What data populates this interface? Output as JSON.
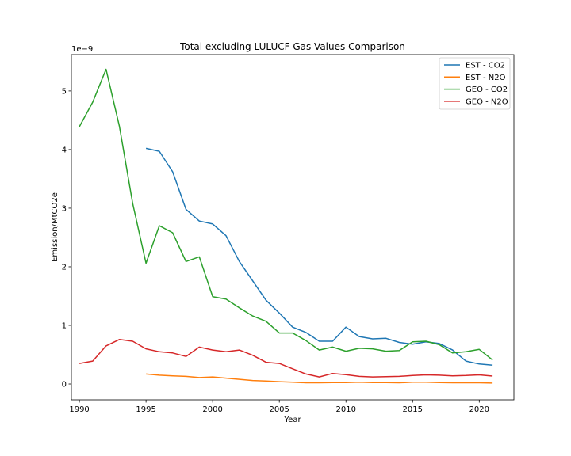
{
  "chart_data": {
    "type": "line",
    "title": "Total excluding LULUCF Gas Values Comparison",
    "xlabel": "Year",
    "ylabel": "Emission/MtCO2e",
    "y_offset_label": "1e−9",
    "xlim": [
      1989.4,
      2022.6
    ],
    "ylim": [
      -0.27,
      5.62
    ],
    "x_ticks": [
      1990,
      1995,
      2000,
      2005,
      2010,
      2015,
      2020
    ],
    "y_ticks": [
      0,
      1,
      2,
      3,
      4,
      5
    ],
    "legend_position": "upper right",
    "grid": false,
    "series": [
      {
        "name": "EST - CO2",
        "color": "#1f77b4",
        "x": [
          1995,
          1996,
          1997,
          1998,
          1999,
          2000,
          2001,
          2002,
          2003,
          2004,
          2005,
          2006,
          2007,
          2008,
          2009,
          2010,
          2011,
          2012,
          2013,
          2014,
          2015,
          2016,
          2017,
          2018,
          2019,
          2020,
          2021
        ],
        "y": [
          4.02,
          3.97,
          3.62,
          2.98,
          2.78,
          2.73,
          2.53,
          2.09,
          1.76,
          1.43,
          1.21,
          0.97,
          0.88,
          0.73,
          0.73,
          0.97,
          0.81,
          0.77,
          0.78,
          0.71,
          0.68,
          0.72,
          0.69,
          0.58,
          0.39,
          0.34,
          0.32
        ]
      },
      {
        "name": "EST - N2O",
        "color": "#ff7f0e",
        "x": [
          1995,
          1996,
          1997,
          1998,
          1999,
          2000,
          2001,
          2002,
          2003,
          2004,
          2005,
          2006,
          2007,
          2008,
          2009,
          2010,
          2011,
          2012,
          2013,
          2014,
          2015,
          2016,
          2017,
          2018,
          2019,
          2020,
          2021
        ],
        "y": [
          0.17,
          0.15,
          0.14,
          0.13,
          0.11,
          0.12,
          0.1,
          0.08,
          0.06,
          0.05,
          0.04,
          0.03,
          0.02,
          0.02,
          0.025,
          0.025,
          0.03,
          0.025,
          0.025,
          0.02,
          0.03,
          0.03,
          0.025,
          0.02,
          0.02,
          0.02,
          0.015
        ]
      },
      {
        "name": "GEO - CO2",
        "color": "#2ca02c",
        "x": [
          1990,
          1991,
          1992,
          1993,
          1994,
          1995,
          1996,
          1997,
          1998,
          1999,
          2000,
          2001,
          2002,
          2003,
          2004,
          2005,
          2006,
          2007,
          2008,
          2009,
          2010,
          2011,
          2012,
          2013,
          2014,
          2015,
          2016,
          2017,
          2018,
          2019,
          2020,
          2021
        ],
        "y": [
          4.39,
          4.81,
          5.37,
          4.4,
          3.08,
          2.06,
          2.7,
          2.58,
          2.09,
          2.17,
          1.49,
          1.45,
          1.3,
          1.16,
          1.07,
          0.87,
          0.87,
          0.74,
          0.58,
          0.63,
          0.56,
          0.61,
          0.6,
          0.56,
          0.57,
          0.72,
          0.73,
          0.67,
          0.53,
          0.55,
          0.59,
          0.41
        ]
      },
      {
        "name": "GEO - N2O",
        "color": "#d62728",
        "x": [
          1990,
          1991,
          1992,
          1993,
          1994,
          1995,
          1996,
          1997,
          1998,
          1999,
          2000,
          2001,
          2002,
          2003,
          2004,
          2005,
          2006,
          2007,
          2008,
          2009,
          2010,
          2011,
          2012,
          2013,
          2014,
          2015,
          2016,
          2017,
          2018,
          2019,
          2020,
          2021
        ],
        "y": [
          0.35,
          0.39,
          0.65,
          0.76,
          0.73,
          0.6,
          0.55,
          0.53,
          0.47,
          0.63,
          0.58,
          0.55,
          0.58,
          0.49,
          0.37,
          0.35,
          0.26,
          0.17,
          0.12,
          0.18,
          0.16,
          0.13,
          0.12,
          0.125,
          0.13,
          0.145,
          0.155,
          0.15,
          0.14,
          0.145,
          0.155,
          0.135
        ]
      }
    ]
  }
}
